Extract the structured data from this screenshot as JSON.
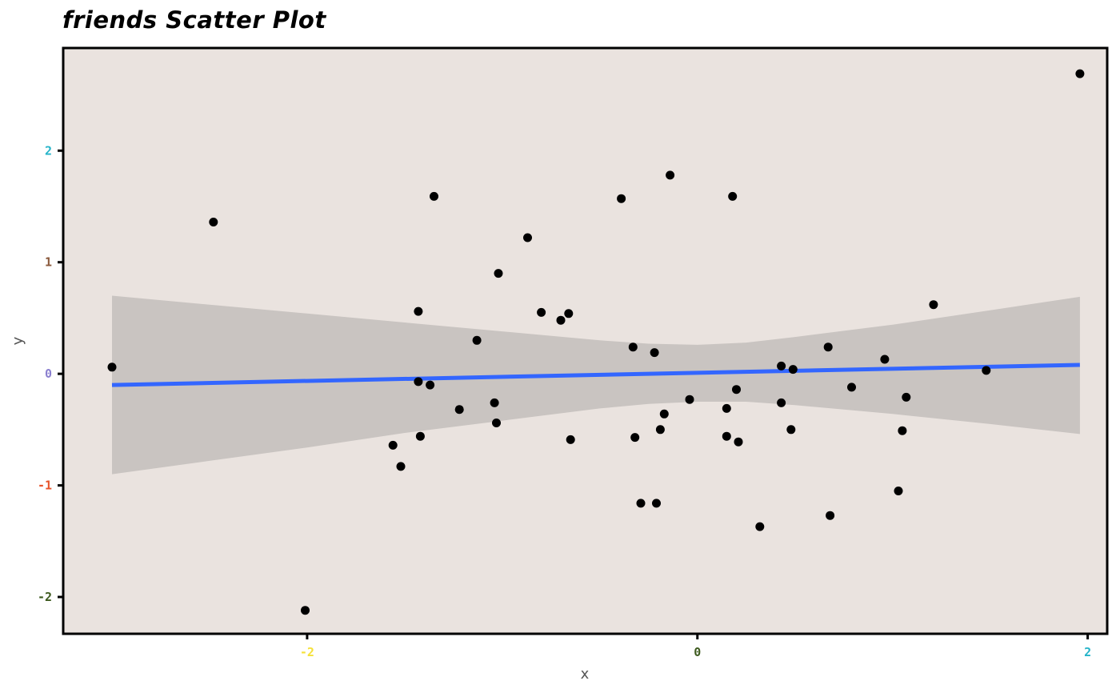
{
  "chart_data": {
    "type": "scatter",
    "title": "friends Scatter Plot",
    "xlabel": "x",
    "ylabel": "y",
    "xlim": [
      -3.25,
      2.1
    ],
    "ylim": [
      -2.33,
      2.92
    ],
    "x_ticks": [
      {
        "value": -2,
        "label": "-2",
        "color": "#f5e13a"
      },
      {
        "value": 0,
        "label": "0",
        "color": "#3d5a1e"
      },
      {
        "value": 2,
        "label": "2",
        "color": "#26b4c9"
      }
    ],
    "y_ticks": [
      {
        "value": -2,
        "label": "-2",
        "color": "#3d5a1e"
      },
      {
        "value": -1,
        "label": "-1",
        "color": "#e8542a"
      },
      {
        "value": 0,
        "label": "0",
        "color": "#8a7fcf"
      },
      {
        "value": 1,
        "label": "1",
        "color": "#8b5a3c"
      },
      {
        "value": 2,
        "label": "2",
        "color": "#26b4c9"
      }
    ],
    "grid": false,
    "panel_background": "#eae3df",
    "point_color": "#000000",
    "trend_line": {
      "method": "linear",
      "color": "#3366ff",
      "start": {
        "x": -3.0,
        "y": -0.1
      },
      "end": {
        "x": 1.96,
        "y": 0.08
      },
      "ribbon_color": "#c9c4c1",
      "ribbon": [
        {
          "x": -3.0,
          "lower": -0.9,
          "upper": 0.7
        },
        {
          "x": -2.5,
          "lower": -0.78,
          "upper": 0.62
        },
        {
          "x": -2.0,
          "lower": -0.66,
          "upper": 0.54
        },
        {
          "x": -1.5,
          "lower": -0.53,
          "upper": 0.46
        },
        {
          "x": -1.0,
          "lower": -0.42,
          "upper": 0.38
        },
        {
          "x": -0.5,
          "lower": -0.31,
          "upper": 0.3
        },
        {
          "x": -0.25,
          "lower": -0.27,
          "upper": 0.27
        },
        {
          "x": 0.0,
          "lower": -0.25,
          "upper": 0.26
        },
        {
          "x": 0.25,
          "lower": -0.25,
          "upper": 0.28
        },
        {
          "x": 0.5,
          "lower": -0.28,
          "upper": 0.33
        },
        {
          "x": 1.0,
          "lower": -0.36,
          "upper": 0.44
        },
        {
          "x": 1.5,
          "lower": -0.45,
          "upper": 0.57
        },
        {
          "x": 1.96,
          "lower": -0.54,
          "upper": 0.69
        }
      ]
    },
    "points": [
      {
        "x": -3.0,
        "y": 0.06
      },
      {
        "x": -2.48,
        "y": 1.36
      },
      {
        "x": -2.01,
        "y": -2.12
      },
      {
        "x": -1.56,
        "y": -0.64
      },
      {
        "x": -1.52,
        "y": -0.83
      },
      {
        "x": -1.43,
        "y": 0.56
      },
      {
        "x": -1.43,
        "y": -0.07
      },
      {
        "x": -1.42,
        "y": -0.56
      },
      {
        "x": -1.37,
        "y": -0.1
      },
      {
        "x": -1.35,
        "y": 1.59
      },
      {
        "x": -1.22,
        "y": -0.32
      },
      {
        "x": -1.13,
        "y": 0.3
      },
      {
        "x": -1.04,
        "y": -0.26
      },
      {
        "x": -1.03,
        "y": -0.44
      },
      {
        "x": -1.02,
        "y": 0.9
      },
      {
        "x": -0.87,
        "y": 1.22
      },
      {
        "x": -0.8,
        "y": 0.55
      },
      {
        "x": -0.7,
        "y": 0.48
      },
      {
        "x": -0.66,
        "y": 0.54
      },
      {
        "x": -0.65,
        "y": -0.59
      },
      {
        "x": -0.39,
        "y": 1.57
      },
      {
        "x": -0.33,
        "y": 0.24
      },
      {
        "x": -0.32,
        "y": -0.57
      },
      {
        "x": -0.29,
        "y": -1.16
      },
      {
        "x": -0.22,
        "y": 0.19
      },
      {
        "x": -0.21,
        "y": -1.16
      },
      {
        "x": -0.19,
        "y": -0.5
      },
      {
        "x": -0.17,
        "y": -0.36
      },
      {
        "x": -0.14,
        "y": 1.78
      },
      {
        "x": -0.04,
        "y": -0.23
      },
      {
        "x": 0.15,
        "y": -0.31
      },
      {
        "x": 0.15,
        "y": -0.56
      },
      {
        "x": 0.18,
        "y": 1.59
      },
      {
        "x": 0.2,
        "y": -0.14
      },
      {
        "x": 0.21,
        "y": -0.61
      },
      {
        "x": 0.32,
        "y": -1.37
      },
      {
        "x": 0.43,
        "y": -0.26
      },
      {
        "x": 0.43,
        "y": 0.07
      },
      {
        "x": 0.48,
        "y": -0.5
      },
      {
        "x": 0.49,
        "y": 0.04
      },
      {
        "x": 0.67,
        "y": 0.24
      },
      {
        "x": 0.68,
        "y": -1.27
      },
      {
        "x": 0.79,
        "y": -0.12
      },
      {
        "x": 0.96,
        "y": 0.13
      },
      {
        "x": 1.03,
        "y": -1.05
      },
      {
        "x": 1.05,
        "y": -0.51
      },
      {
        "x": 1.07,
        "y": -0.21
      },
      {
        "x": 1.21,
        "y": 0.62
      },
      {
        "x": 1.48,
        "y": 0.03
      },
      {
        "x": 1.96,
        "y": 2.69
      }
    ]
  }
}
